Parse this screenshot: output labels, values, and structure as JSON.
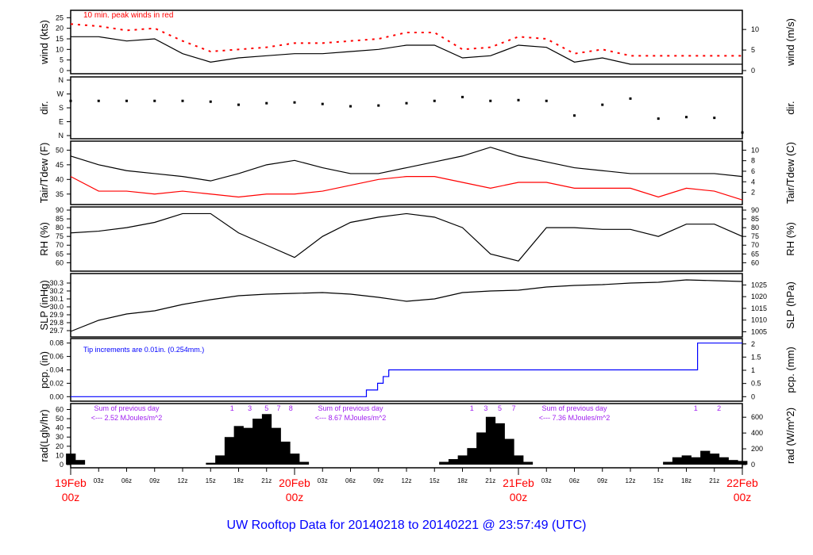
{
  "chart_data": {
    "type": "line",
    "title": "UW Rooftop Data for 20140218  to  20140221 @ 23:57:49  (UTC)",
    "x_unit": "hours from 19Feb 00z",
    "x": [
      0,
      3,
      6,
      9,
      12,
      15,
      18,
      21,
      24,
      27,
      30,
      33,
      36,
      39,
      42,
      45,
      48,
      51,
      54,
      57,
      60,
      63,
      66,
      69,
      72
    ],
    "xlim": [
      0,
      72
    ],
    "x_ticks": [
      {
        "h": 0,
        "label": "19Feb",
        "sub": "00z",
        "major": true
      },
      {
        "h": 3,
        "label": "03z"
      },
      {
        "h": 6,
        "label": "06z"
      },
      {
        "h": 9,
        "label": "09z"
      },
      {
        "h": 12,
        "label": "12z"
      },
      {
        "h": 15,
        "label": "15z"
      },
      {
        "h": 18,
        "label": "18z"
      },
      {
        "h": 21,
        "label": "21z"
      },
      {
        "h": 24,
        "label": "20Feb",
        "sub": "00z",
        "major": true
      },
      {
        "h": 27,
        "label": "03z"
      },
      {
        "h": 30,
        "label": "06z"
      },
      {
        "h": 33,
        "label": "09z"
      },
      {
        "h": 36,
        "label": "12z"
      },
      {
        "h": 39,
        "label": "15z"
      },
      {
        "h": 42,
        "label": "18z"
      },
      {
        "h": 45,
        "label": "21z"
      },
      {
        "h": 48,
        "label": "21Feb",
        "sub": "00z",
        "major": true
      },
      {
        "h": 51,
        "label": "03z"
      },
      {
        "h": 54,
        "label": "06z"
      },
      {
        "h": 57,
        "label": "09z"
      },
      {
        "h": 60,
        "label": "12z"
      },
      {
        "h": 63,
        "label": "15z"
      },
      {
        "h": 66,
        "label": "18z"
      },
      {
        "h": 69,
        "label": "21z"
      },
      {
        "h": 72,
        "label": "22Feb",
        "sub": "00z",
        "major": true
      }
    ],
    "colors": {
      "axis": "#000000",
      "peak": "#ff0000",
      "dewpoint": "#ff0000",
      "precip": "#0000ff",
      "rad_note": "#a020f0",
      "date": "#ff0000",
      "title": "#0000ff"
    },
    "panels": [
      {
        "id": "wind",
        "ylabel": "wind (kts)",
        "ylabel_right": "wind (m/s)",
        "ylim": [
          0,
          27
        ],
        "yticks": [
          0,
          5,
          10,
          15,
          20,
          25
        ],
        "yticks_right": [
          {
            "v": 0,
            "l": "0"
          },
          {
            "v": 9.72,
            "l": "5"
          },
          {
            "v": 19.44,
            "l": "10"
          }
        ],
        "note": "10 min. peak winds in red",
        "series": [
          {
            "name": "wind",
            "color": "#000000",
            "values": [
              16,
              16,
              14,
              15,
              8,
              4,
              6,
              7,
              8,
              8,
              9,
              10,
              12,
              12,
              6,
              7,
              12,
              11,
              4,
              6,
              3,
              3,
              3,
              3,
              3
            ]
          },
          {
            "name": "10 min. peak winds",
            "color": "#ff0000",
            "style": "dash",
            "values": [
              22,
              21,
              19,
              20,
              14,
              9,
              10,
              11,
              13,
              13,
              14,
              15,
              18,
              18,
              10,
              11,
              16,
              15,
              8,
              10,
              7,
              7,
              7,
              7,
              7
            ]
          }
        ]
      },
      {
        "id": "dir",
        "ylabel": "dir.",
        "ylabel_right": "dir.",
        "ylim": [
          0,
          360
        ],
        "yticks": [
          {
            "v": 0,
            "l": "N"
          },
          {
            "v": 90,
            "l": "E"
          },
          {
            "v": 180,
            "l": "S"
          },
          {
            "v": 270,
            "l": "W"
          },
          {
            "v": 360,
            "l": "N"
          }
        ],
        "series": [
          {
            "name": "direction",
            "color": "#000000",
            "style": "dots",
            "values": [
              225,
              225,
              225,
              225,
              225,
              220,
              200,
              210,
              215,
              205,
              190,
              195,
              210,
              225,
              250,
              225,
              230,
              225,
              130,
              200,
              240,
              110,
              120,
              115,
              20
            ]
          }
        ]
      },
      {
        "id": "temp",
        "ylabel": "Tair/Tdew (F)",
        "ylabel_right": "Tair/Tdew (C)",
        "ylim": [
          32.5,
          52
        ],
        "yticks": [
          35,
          40,
          45,
          50
        ],
        "yticks_right": [
          {
            "v": 35.6,
            "l": "2"
          },
          {
            "v": 39.2,
            "l": "4"
          },
          {
            "v": 42.8,
            "l": "6"
          },
          {
            "v": 46.4,
            "l": "8"
          },
          {
            "v": 50,
            "l": "10"
          }
        ],
        "series": [
          {
            "name": "Tair",
            "color": "#000000",
            "values": [
              48,
              45,
              43,
              42,
              41,
              39.5,
              42,
              45,
              46.5,
              44,
              42,
              42,
              44,
              46,
              48,
              51,
              48,
              46,
              44,
              43,
              42,
              42,
              42,
              42,
              41
            ]
          },
          {
            "name": "Tdew",
            "color": "#ff0000",
            "values": [
              41,
              36,
              36,
              35,
              36,
              35,
              34,
              35,
              35,
              36,
              38,
              40,
              41,
              41,
              39,
              37,
              39,
              39,
              37,
              37,
              37,
              34,
              37,
              36,
              33
            ]
          }
        ]
      },
      {
        "id": "rh",
        "ylabel": "RH (%)",
        "ylabel_right": "RH (%)",
        "ylim": [
          57,
          90
        ],
        "yticks": [
          60,
          65,
          70,
          75,
          80,
          85,
          90
        ],
        "yticks_right": [
          {
            "v": 60,
            "l": "60"
          },
          {
            "v": 65,
            "l": "65"
          },
          {
            "v": 70,
            "l": "70"
          },
          {
            "v": 75,
            "l": "75"
          },
          {
            "v": 80,
            "l": "80"
          },
          {
            "v": 85,
            "l": "85"
          },
          {
            "v": 90,
            "l": "90"
          }
        ],
        "series": [
          {
            "name": "RH",
            "color": "#000000",
            "values": [
              77,
              78,
              80,
              83,
              88,
              88,
              77,
              70,
              63,
              75,
              83,
              86,
              88,
              86,
              80,
              65,
              61,
              80,
              80,
              79,
              79,
              75,
              82,
              82,
              75
            ]
          }
        ]
      },
      {
        "id": "slp",
        "ylabel": "SLP (inHg)",
        "ylabel_right": "SLP (hPa)",
        "ylim": [
          29.66,
          30.38
        ],
        "yticks": [
          29.7,
          29.8,
          29.9,
          30.0,
          30.1,
          30.2,
          30.3
        ],
        "yticks_right": [
          {
            "v": 29.6854,
            "l": "1005"
          },
          {
            "v": 29.8331,
            "l": "1010"
          },
          {
            "v": 29.9807,
            "l": "1015"
          },
          {
            "v": 30.1284,
            "l": "1020"
          },
          {
            "v": 30.276,
            "l": "1025"
          }
        ],
        "series": [
          {
            "name": "SLP",
            "color": "#000000",
            "values": [
              29.69,
              29.83,
              29.91,
              29.95,
              30.03,
              30.09,
              30.14,
              30.16,
              30.17,
              30.18,
              30.16,
              30.12,
              30.07,
              30.1,
              30.18,
              30.2,
              30.21,
              30.25,
              30.27,
              30.28,
              30.3,
              30.31,
              30.34,
              30.33,
              30.32
            ]
          }
        ]
      },
      {
        "id": "pcp",
        "ylabel": "pcp. (in)",
        "ylabel_right": "pcp. (mm)",
        "ylim": [
          -0.002,
          0.082
        ],
        "yticks": [
          0,
          0.02,
          0.04,
          0.06,
          0.08
        ],
        "yticks_right": [
          {
            "v": 0,
            "l": "0"
          },
          {
            "v": 0.0197,
            "l": "0.5"
          },
          {
            "v": 0.0394,
            "l": "1"
          },
          {
            "v": 0.0591,
            "l": "1.5"
          },
          {
            "v": 0.0787,
            "l": "2"
          }
        ],
        "note": "Tip increments are 0.01in. (0.254mm.)",
        "steps": [
          {
            "h": 0,
            "v": 0
          },
          {
            "h": 31.7,
            "v": 0.01
          },
          {
            "h": 32.9,
            "v": 0.02
          },
          {
            "h": 33.5,
            "v": 0.03
          },
          {
            "h": 34.1,
            "v": 0.04
          },
          {
            "h": 67.2,
            "v": 0.08
          },
          {
            "h": 72,
            "v": 0.08
          }
        ]
      },
      {
        "id": "rad",
        "ylabel": "rad(Lgly/hr)",
        "ylabel_right": "rad (W/m^2)",
        "ylim": [
          0,
          63
        ],
        "yticks": [
          0,
          10,
          20,
          30,
          40,
          50,
          60
        ],
        "yticks_right": [
          {
            "v": 0,
            "l": "0"
          },
          {
            "v": 17.2,
            "l": "200"
          },
          {
            "v": 34.4,
            "l": "400"
          },
          {
            "v": 51.6,
            "l": "600"
          }
        ],
        "hourly": [
          12,
          5,
          0,
          0,
          0,
          0,
          0,
          0,
          0,
          0,
          0,
          0,
          0,
          0,
          0,
          2,
          10,
          30,
          42,
          40,
          50,
          55,
          40,
          25,
          12,
          3,
          0,
          0,
          0,
          0,
          0,
          0,
          0,
          0,
          0,
          0,
          0,
          0,
          0,
          0,
          3,
          6,
          10,
          18,
          35,
          52,
          45,
          28,
          10,
          3,
          0,
          0,
          0,
          0,
          0,
          0,
          0,
          0,
          0,
          0,
          0,
          0,
          0,
          0,
          3,
          8,
          10,
          8,
          15,
          12,
          8,
          5,
          4
        ],
        "day_notes": [
          {
            "h": 6,
            "line1": "Sum of previous day",
            "line2": "<--- 2.52 MJoules/m^2"
          },
          {
            "h": 30,
            "line1": "Sum of previous day",
            "line2": "<--- 8.67 MJoules/m^2"
          },
          {
            "h": 54,
            "line1": "Sum of previous day",
            "line2": "<--- 7.36 MJoules/m^2"
          }
        ],
        "hour_marks": [
          {
            "h": 17.3,
            "l": "1"
          },
          {
            "h": 19.2,
            "l": "3"
          },
          {
            "h": 21,
            "l": "5"
          },
          {
            "h": 22.3,
            "l": "7"
          },
          {
            "h": 23.6,
            "l": "8"
          },
          {
            "h": 43,
            "l": "1"
          },
          {
            "h": 44.5,
            "l": "3"
          },
          {
            "h": 46,
            "l": "5"
          },
          {
            "h": 47.5,
            "l": "7"
          },
          {
            "h": 67,
            "l": "1"
          },
          {
            "h": 69.5,
            "l": "2"
          }
        ]
      }
    ]
  }
}
